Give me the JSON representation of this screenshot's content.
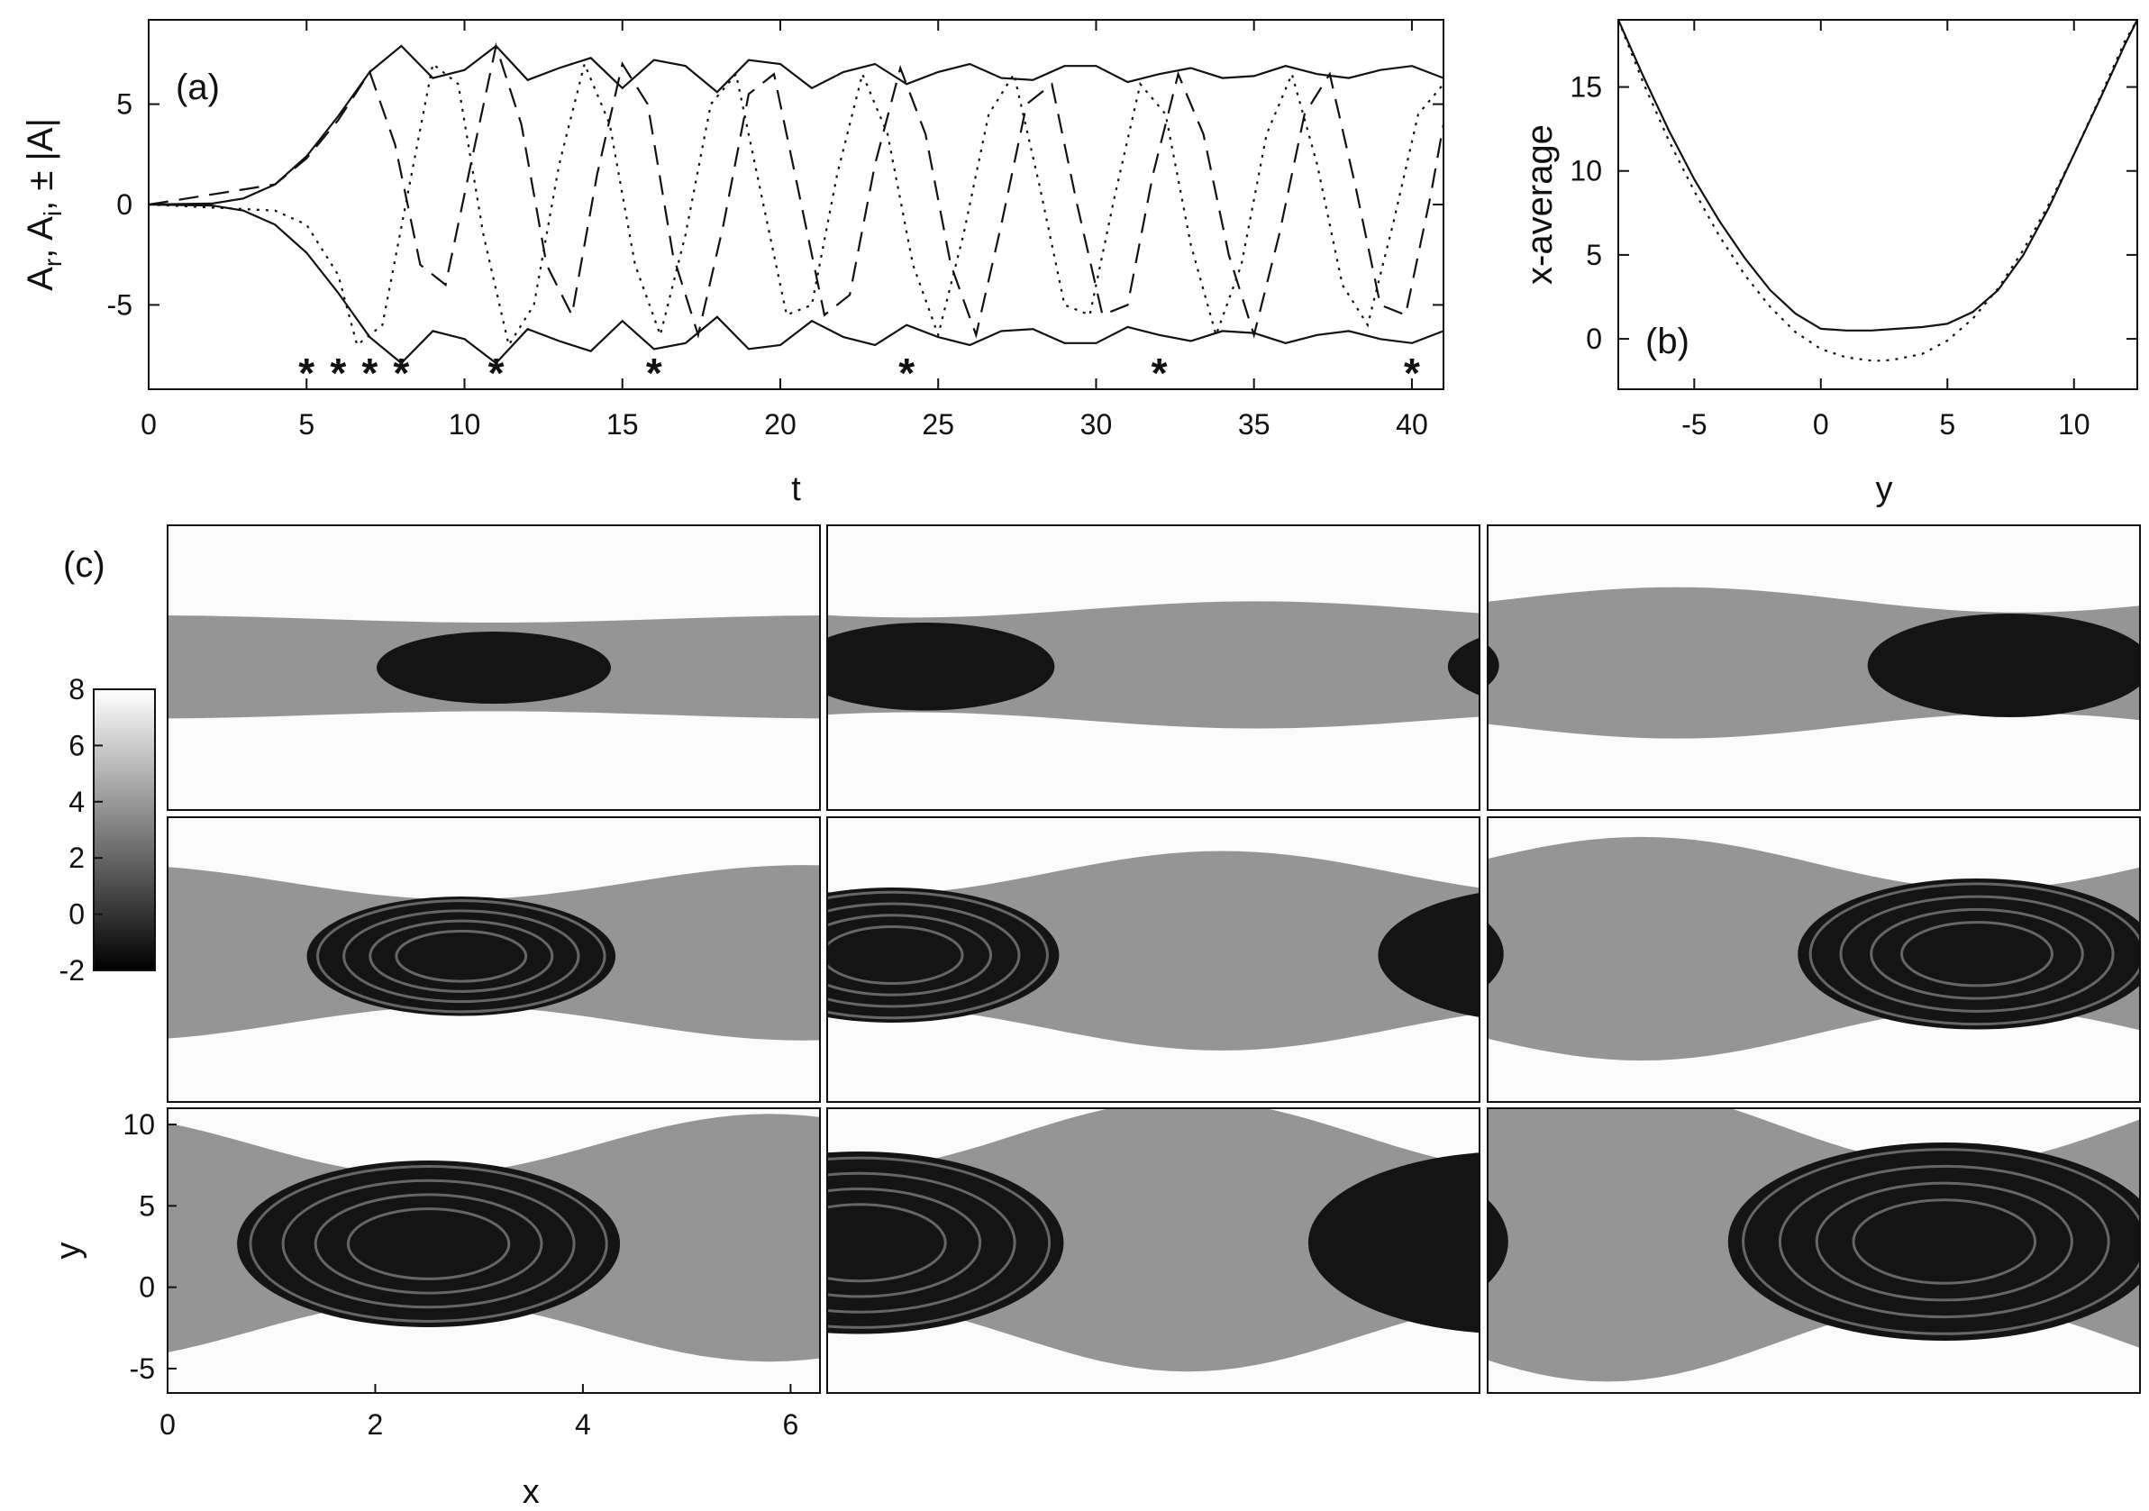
{
  "chart_data": [
    {
      "panel_label": "(a)",
      "type": "line",
      "xlabel": "t",
      "ylabel_parts": [
        "A",
        "r",
        ",  A",
        "i",
        ",  ± |A|"
      ],
      "xlim": [
        0,
        41
      ],
      "ylim": [
        -9.2,
        9.2
      ],
      "xticks": [
        0,
        5,
        10,
        15,
        20,
        25,
        30,
        35,
        40
      ],
      "yticks": [
        -5,
        0,
        5
      ],
      "grid": false,
      "series": [
        {
          "style": "solid",
          "x": [
            0,
            2,
            3,
            4,
            5,
            6,
            7,
            8,
            9,
            10,
            11,
            12,
            13,
            14,
            15,
            16,
            17,
            18,
            19,
            20,
            21,
            22,
            23,
            24,
            25,
            26,
            27,
            28,
            29,
            30,
            31,
            32,
            33,
            34,
            35,
            36,
            37,
            38,
            39,
            40,
            41
          ],
          "y": [
            0,
            0.05,
            0.3,
            1.0,
            2.4,
            4.4,
            6.6,
            7.9,
            6.3,
            6.7,
            7.9,
            6.2,
            6.8,
            7.3,
            5.8,
            7.2,
            6.9,
            5.6,
            7.2,
            7.0,
            5.8,
            6.6,
            7.0,
            6.0,
            6.6,
            7.0,
            6.3,
            6.2,
            6.9,
            6.9,
            6.1,
            6.5,
            6.8,
            6.3,
            6.4,
            6.9,
            6.5,
            6.3,
            6.7,
            6.9,
            6.3
          ]
        },
        {
          "style": "dashed",
          "x": [
            0,
            4,
            5,
            6,
            7,
            7.8,
            8.6,
            9.4,
            10.2,
            11.0,
            11.8,
            12.6,
            13.4,
            14.2,
            15.0,
            15.8,
            16.6,
            17.4,
            18.2,
            19.0,
            19.8,
            20.6,
            21.4,
            22.2,
            23.0,
            23.8,
            24.6,
            25.4,
            26.2,
            27.0,
            27.8,
            28.6,
            29.4,
            30.2,
            31.0,
            31.8,
            32.6,
            33.4,
            34.2,
            35.0,
            35.8,
            36.6,
            37.4,
            38.2,
            39.0,
            39.8,
            40.6,
            41.0
          ],
          "y": [
            0,
            1.0,
            2.3,
            4.2,
            6.6,
            3.0,
            -3.0,
            -4.0,
            2.0,
            7.9,
            4.0,
            -3.0,
            -5.5,
            1.5,
            7.0,
            5.0,
            -2.5,
            -6.5,
            -1.0,
            5.5,
            6.5,
            0.5,
            -5.5,
            -4.5,
            2.0,
            6.8,
            3.5,
            -3.0,
            -6.5,
            -1.0,
            5.0,
            6.0,
            0.0,
            -5.5,
            -5.0,
            1.5,
            6.5,
            3.5,
            -2.5,
            -6.5,
            -1.5,
            4.5,
            6.5,
            1.0,
            -5.0,
            -5.5,
            0.5,
            4.0
          ]
        },
        {
          "style": "dotted",
          "x": [
            0,
            4,
            5,
            6,
            6.6,
            7.4,
            8.2,
            9.0,
            9.8,
            10.6,
            11.4,
            12.2,
            13.0,
            13.8,
            14.6,
            15.4,
            16.2,
            17.0,
            17.8,
            18.6,
            19.4,
            20.2,
            21.0,
            21.8,
            22.6,
            23.4,
            24.2,
            25.0,
            25.8,
            26.6,
            27.4,
            28.2,
            29.0,
            29.8,
            30.6,
            31.4,
            32.2,
            33.0,
            33.8,
            34.6,
            35.4,
            36.2,
            37.0,
            37.8,
            38.6,
            39.4,
            40.2,
            41.0
          ],
          "y": [
            0,
            -0.3,
            -1.0,
            -3.5,
            -7.0,
            -6.0,
            0.5,
            7.0,
            6.0,
            -1.5,
            -7.0,
            -5.0,
            2.0,
            7.0,
            4.0,
            -3.0,
            -6.5,
            -1.5,
            5.0,
            6.5,
            0.5,
            -5.5,
            -5.0,
            1.5,
            6.5,
            3.5,
            -3.0,
            -6.5,
            -1.5,
            4.5,
            6.5,
            1.0,
            -5.0,
            -5.5,
            0.5,
            6.0,
            4.5,
            -2.0,
            -6.5,
            -3.0,
            3.5,
            6.5,
            2.0,
            -4.0,
            -6.0,
            -1.0,
            4.5,
            6.0
          ]
        }
      ],
      "mirror_solid_negative": true,
      "markers": {
        "symbol": "*",
        "t": [
          5,
          6,
          7,
          8,
          11,
          16,
          24,
          32,
          40
        ]
      }
    },
    {
      "panel_label": "(b)",
      "type": "line",
      "xlabel": "y",
      "ylabel": "x-average",
      "xlim": [
        -8,
        12.5
      ],
      "ylim": [
        -3,
        19
      ],
      "xticks": [
        -5,
        0,
        5,
        10
      ],
      "yticks": [
        0,
        5,
        10,
        15
      ],
      "grid": false,
      "series": [
        {
          "style": "solid",
          "x": [
            -8,
            -7,
            -6,
            -5,
            -4,
            -3,
            -2,
            -1,
            0,
            1,
            2,
            3,
            4,
            5,
            6,
            7,
            8,
            9,
            10,
            11,
            12,
            12.5
          ],
          "y": [
            19,
            15.6,
            12.4,
            9.5,
            7.0,
            4.8,
            2.9,
            1.5,
            0.6,
            0.5,
            0.5,
            0.6,
            0.7,
            0.9,
            1.6,
            2.9,
            5.0,
            7.8,
            11.0,
            14.2,
            17.5,
            19
          ]
        },
        {
          "style": "dotted",
          "x": [
            -8,
            -7,
            -6,
            -5,
            -4,
            -3,
            -2,
            -1,
            0,
            1,
            2,
            2.5,
            3,
            4,
            5,
            6,
            7,
            8,
            9,
            10,
            11,
            12,
            12.5
          ],
          "y": [
            19,
            15.2,
            11.8,
            8.8,
            6.1,
            3.8,
            1.9,
            0.4,
            -0.6,
            -1.1,
            -1.3,
            -1.3,
            -1.2,
            -0.9,
            -0.1,
            1.2,
            3.0,
            5.3,
            8.0,
            11.0,
            14.3,
            17.7,
            19
          ]
        }
      ]
    },
    {
      "panel_label": "(c)",
      "type": "heatmap",
      "layout": "3x3 snapshots",
      "xlabel": "x",
      "ylabel": "y",
      "xlim": [
        0,
        6.2832
      ],
      "ylim": [
        -6.5,
        11
      ],
      "xticks": [
        0,
        2,
        4,
        6
      ],
      "yticks": [
        -5,
        0,
        5,
        10
      ],
      "colorbar": {
        "ticks": [
          -2,
          0,
          2,
          4,
          6,
          8
        ],
        "range": [
          -2,
          8
        ],
        "colormap": "gray"
      },
      "snapshot_times": [
        5,
        6,
        7,
        8,
        11,
        16,
        24,
        32,
        40
      ]
    }
  ]
}
